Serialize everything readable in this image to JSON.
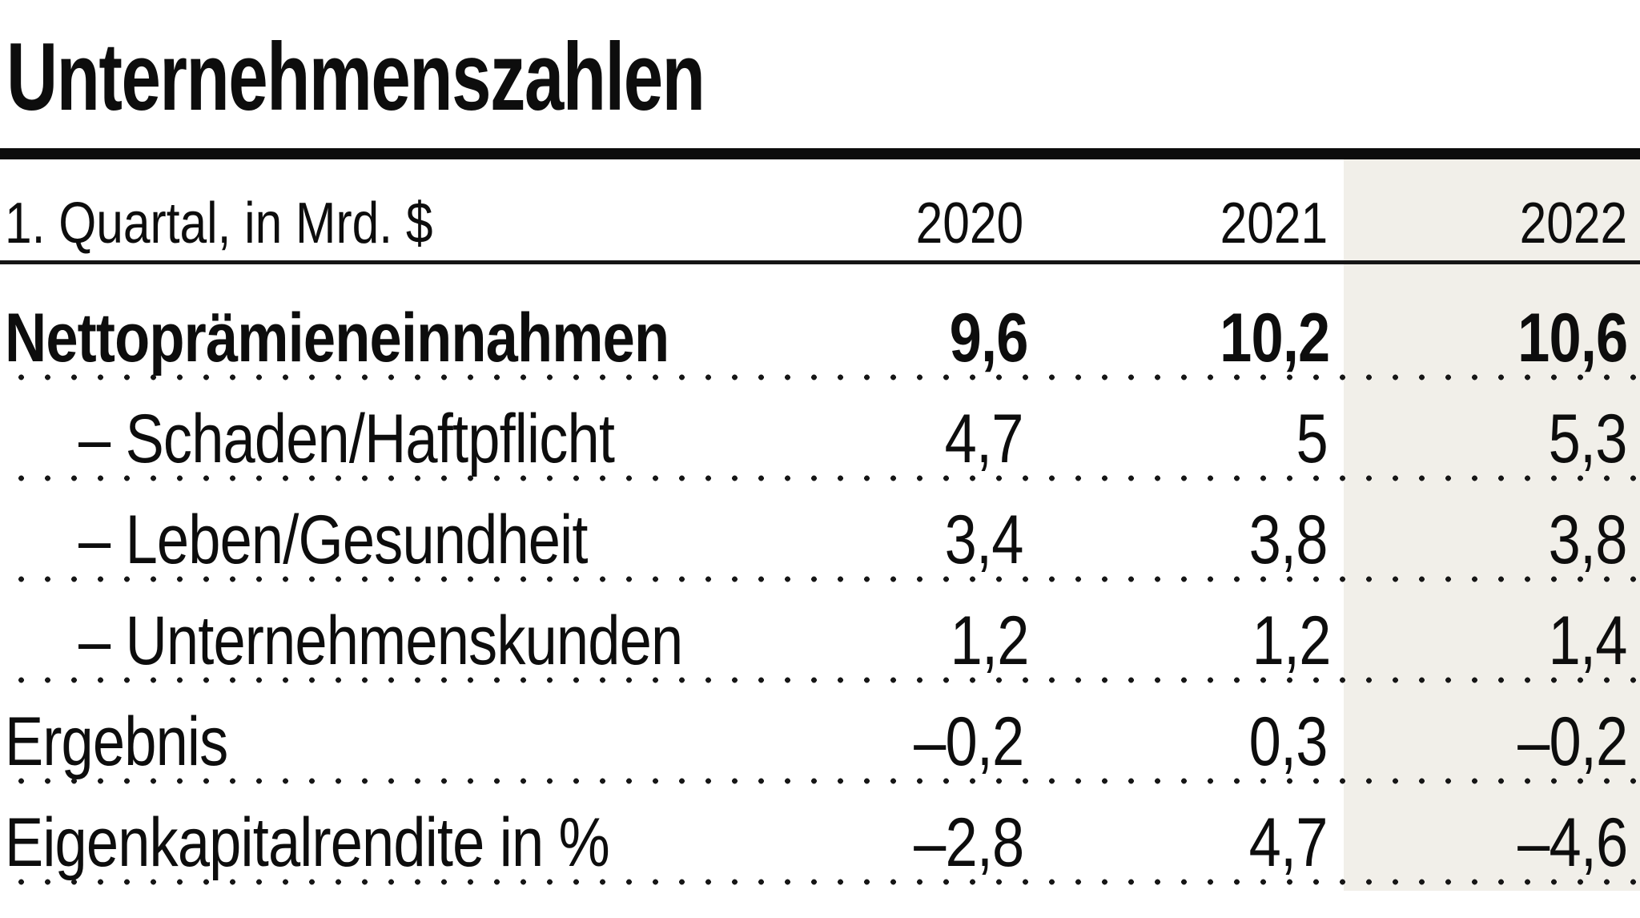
{
  "title": "Unternehmenszahlen",
  "table": {
    "unit_label": "1. Quartal, in Mrd. $",
    "years": [
      "2020",
      "2021",
      "2022"
    ],
    "highlighted_year": "2022",
    "rows": [
      {
        "label": "Nettoprämieneinnahmen",
        "values": [
          "9,6",
          "10,2",
          "10,6"
        ],
        "emphasis": true,
        "indent": false
      },
      {
        "label": "– Schaden/Haftpflicht",
        "values": [
          "4,7",
          "5",
          "5,3"
        ],
        "emphasis": false,
        "indent": true
      },
      {
        "label": "– Leben/Gesundheit",
        "values": [
          "3,4",
          "3,8",
          "3,8"
        ],
        "emphasis": false,
        "indent": true
      },
      {
        "label": "– Unternehmenskunden",
        "values": [
          "1,2",
          "1,2",
          "1,4"
        ],
        "emphasis": false,
        "indent": true
      },
      {
        "label": "Ergebnis",
        "values": [
          "–0,2",
          "0,3",
          "–0,2"
        ],
        "emphasis": false,
        "indent": false
      },
      {
        "label": "Eigenkapitalrendite in %",
        "values": [
          "–2,8",
          "4,7",
          "–4,6"
        ],
        "emphasis": false,
        "indent": false
      }
    ]
  },
  "colors": {
    "highlight_column_bg": "#f1efe9",
    "rule": "#0c0c0c",
    "text": "#0d0d0d"
  },
  "chart_data": {
    "type": "table",
    "title": "Unternehmenszahlen",
    "unit": "1. Quartal, in Mrd. $",
    "columns": [
      "2020",
      "2021",
      "2022"
    ],
    "highlighted_column": "2022",
    "rows": [
      {
        "label": "Nettoprämieneinnahmen",
        "values": [
          9.6,
          10.2,
          10.6
        ]
      },
      {
        "label": "Schaden/Haftpflicht",
        "values": [
          4.7,
          5.0,
          5.3
        ]
      },
      {
        "label": "Leben/Gesundheit",
        "values": [
          3.4,
          3.8,
          3.8
        ]
      },
      {
        "label": "Unternehmenskunden",
        "values": [
          1.2,
          1.2,
          1.4
        ]
      },
      {
        "label": "Ergebnis",
        "values": [
          -0.2,
          0.3,
          -0.2
        ]
      },
      {
        "label": "Eigenkapitalrendite in %",
        "values": [
          -2.8,
          4.7,
          -4.6
        ]
      }
    ]
  }
}
